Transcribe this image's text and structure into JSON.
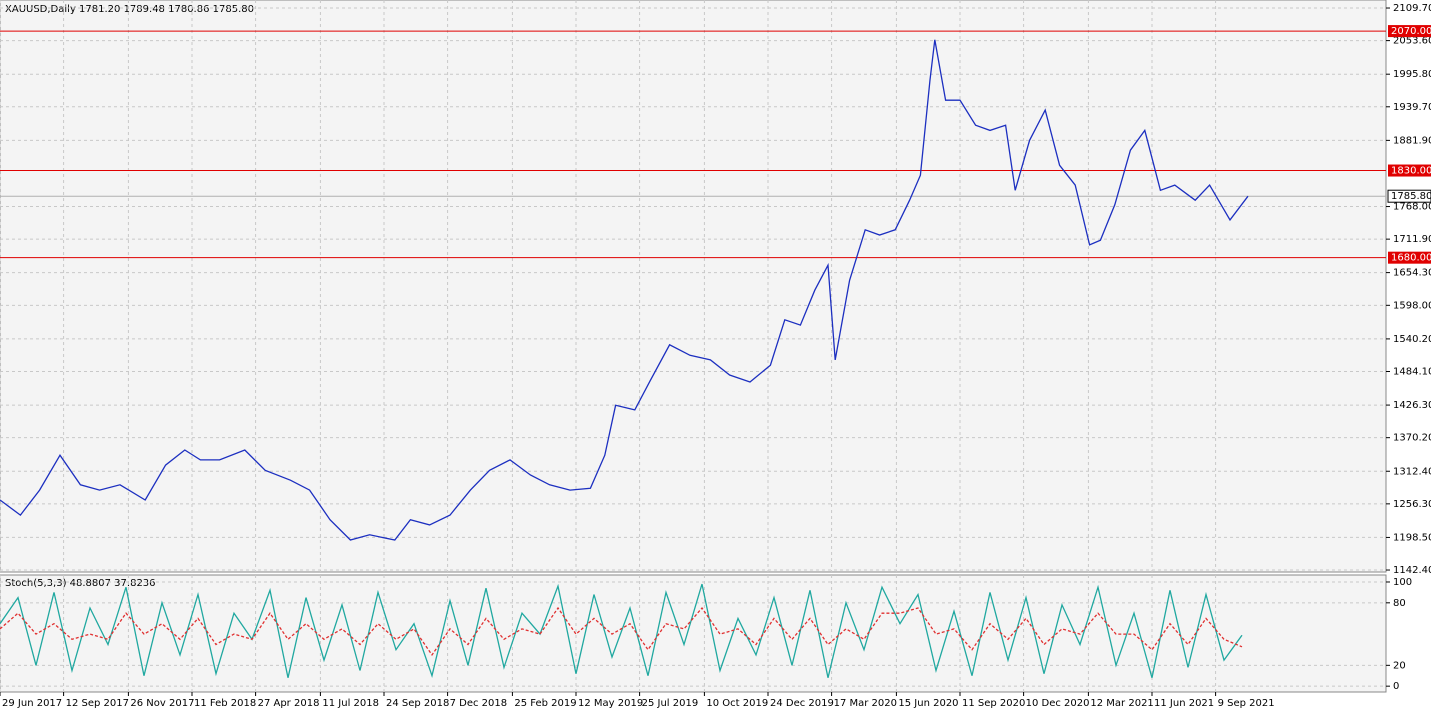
{
  "chart_data": [
    {
      "type": "line",
      "title": "XAUUSD,Daily  1781.20 1789.48 1780.86 1785.80",
      "x": [
        0,
        17,
        33,
        50,
        67,
        83,
        100,
        121,
        138,
        154,
        167,
        183,
        204,
        221,
        242,
        258,
        275,
        292,
        308,
        329,
        342,
        358,
        375,
        392,
        408,
        425,
        442,
        458,
        475,
        492,
        504,
        513,
        529,
        542,
        558,
        575,
        592,
        608,
        625,
        642,
        654,
        667,
        679,
        690,
        696,
        708,
        721,
        733,
        746,
        758,
        767,
        775,
        779,
        788,
        800,
        813,
        825,
        838,
        846,
        858,
        871,
        883,
        896,
        908,
        917,
        929,
        942,
        954,
        967,
        979,
        996,
        1008,
        1025,
        1040
      ],
      "series": [
        {
          "color": "#1c2fc0",
          "values": [
            1263,
            1237,
            1280,
            1340,
            1289,
            1280,
            1289,
            1263,
            1323,
            1349,
            1332,
            1332,
            1349,
            1314,
            1297,
            1280,
            1229,
            1194,
            1203,
            1194,
            1229,
            1220,
            1237,
            1280,
            1314,
            1332,
            1306,
            1289,
            1280,
            1283,
            1340,
            1426,
            1418,
            1469,
            1530,
            1512,
            1504,
            1478,
            1466,
            1495,
            1573,
            1564,
            1624,
            1667,
            1504,
            1641,
            1728,
            1719,
            1728,
            1779,
            1822,
            1986,
            2055,
            1951,
            1951,
            1908,
            1899,
            1908,
            1796,
            1882,
            1934,
            1839,
            1805,
            1702,
            1710,
            1771,
            1865,
            1899,
            1796,
            1805,
            1779,
            1805,
            1745,
            1785.8
          ]
        }
      ],
      "xlim": [
        0,
        1155
      ],
      "ylim": [
        1139.0,
        2123.5
      ],
      "yticks": [
        {
          "value": 1142.4,
          "label": "1142.40"
        },
        {
          "value": 1198.5,
          "label": "1198.50"
        },
        {
          "value": 1256.3,
          "label": "1256.30"
        },
        {
          "value": 1312.4,
          "label": "1312.40"
        },
        {
          "value": 1370.2,
          "label": "1370.20"
        },
        {
          "value": 1426.3,
          "label": "1426.30"
        },
        {
          "value": 1484.1,
          "label": "1484.10"
        },
        {
          "value": 1540.2,
          "label": "1540.20"
        },
        {
          "value": 1598.0,
          "label": "1598.00"
        },
        {
          "value": 1654.3,
          "label": "1654.30"
        },
        {
          "value": 1711.9,
          "label": "1711.90"
        },
        {
          "value": 1768.0,
          "label": "1768.00"
        },
        {
          "value": 1881.9,
          "label": "1881.90"
        },
        {
          "value": 1939.7,
          "label": "1939.70"
        },
        {
          "value": 1995.8,
          "label": "1995.80"
        },
        {
          "value": 2053.6,
          "label": "2053.60"
        },
        {
          "value": 2109.7,
          "label": "2109.70"
        }
      ],
      "hlines": [
        {
          "value": 2070,
          "label": "2070.00"
        },
        {
          "value": 1830,
          "label": "1830.00"
        },
        {
          "value": 1680,
          "label": "1680.00"
        }
      ],
      "hline_color": "#e00000",
      "last_price": {
        "value": 1785.8,
        "label": "1785.80"
      },
      "grid": true
    },
    {
      "type": "line",
      "title": "Stoch(5,3,3) 48.8807 37.8236",
      "x": [
        0,
        15,
        30,
        45,
        60,
        75,
        90,
        105,
        120,
        135,
        150,
        165,
        180,
        195,
        210,
        225,
        240,
        255,
        270,
        285,
        300,
        315,
        330,
        345,
        360,
        375,
        390,
        405,
        420,
        435,
        450,
        465,
        480,
        495,
        510,
        525,
        540,
        555,
        570,
        585,
        600,
        615,
        630,
        645,
        660,
        675,
        690,
        705,
        720,
        735,
        750,
        765,
        780,
        795,
        810,
        825,
        840,
        855,
        870,
        885,
        900,
        915,
        930,
        945,
        960,
        975,
        990,
        1005,
        1020,
        1035
      ],
      "series": [
        {
          "color": "#20a8a0",
          "values": [
            60,
            85,
            20,
            90,
            15,
            75,
            40,
            95,
            10,
            80,
            30,
            88,
            12,
            70,
            45,
            92,
            8,
            85,
            25,
            78,
            15,
            90,
            35,
            60,
            10,
            82,
            20,
            94,
            18,
            70,
            50,
            96,
            12,
            88,
            28,
            75,
            10,
            90,
            40,
            98,
            15,
            65,
            30,
            85,
            20,
            92,
            8,
            80,
            35,
            95,
            60,
            88,
            15,
            72,
            10,
            90,
            25,
            85,
            12,
            78,
            40,
            95,
            20,
            70,
            8,
            92,
            18,
            88,
            25,
            48.8807
          ]
        },
        {
          "color": "#e03030",
          "dash": true,
          "values": [
            55,
            70,
            50,
            60,
            45,
            50,
            45,
            70,
            50,
            60,
            45,
            65,
            40,
            50,
            45,
            70,
            45,
            60,
            45,
            55,
            40,
            60,
            45,
            55,
            30,
            55,
            40,
            65,
            45,
            55,
            50,
            75,
            50,
            65,
            50,
            60,
            35,
            60,
            55,
            75,
            50,
            55,
            40,
            65,
            45,
            65,
            40,
            55,
            45,
            70,
            70,
            75,
            50,
            55,
            35,
            60,
            45,
            65,
            40,
            55,
            50,
            70,
            50,
            50,
            35,
            60,
            40,
            65,
            45,
            37.8236
          ]
        }
      ],
      "xlim": [
        0,
        1155
      ],
      "ylim": [
        -5.6,
        106.7
      ],
      "yticks": [
        0,
        20,
        80,
        100
      ],
      "xticks": [
        {
          "value": 0,
          "label": "29 Jun 2017"
        },
        {
          "value": 53,
          "label": "12 Sep 2017"
        },
        {
          "value": 107,
          "label": "26 Nov 2017"
        },
        {
          "value": 160,
          "label": "11 Feb 2018"
        },
        {
          "value": 213,
          "label": "27 Apr 2018"
        },
        {
          "value": 267,
          "label": "11 Jul 2018"
        },
        {
          "value": 320,
          "label": "24 Sep 2018"
        },
        {
          "value": 373,
          "label": "7 Dec 2018"
        },
        {
          "value": 427,
          "label": "25 Feb 2019"
        },
        {
          "value": 480,
          "label": "12 May 2019"
        },
        {
          "value": 533,
          "label": "25 Jul 2019"
        },
        {
          "value": 587,
          "label": "10 Oct 2019"
        },
        {
          "value": 640,
          "label": "24 Dec 2019"
        },
        {
          "value": 693,
          "label": "17 Mar 2020"
        },
        {
          "value": 747,
          "label": "15 Jun 2020"
        },
        {
          "value": 800,
          "label": "11 Sep 2020"
        },
        {
          "value": 853,
          "label": "10 Dec 2020"
        },
        {
          "value": 907,
          "label": "12 Mar 2021"
        },
        {
          "value": 960,
          "label": "11 Jun 2021"
        },
        {
          "value": 1013,
          "label": "9 Sep 2021"
        }
      ],
      "grid": true
    }
  ]
}
